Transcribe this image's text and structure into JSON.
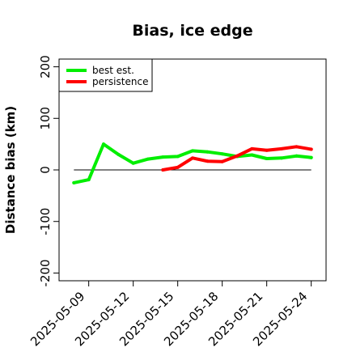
{
  "chart_data": {
    "type": "line",
    "title": "Bias, ice edge",
    "xlabel": "",
    "ylabel": "Distance bias (km)",
    "ylim": [
      -215,
      215
    ],
    "xlim": [
      "2025-05-07",
      "2025-05-25"
    ],
    "y_ticks": [
      "-200",
      "-100",
      "0",
      "100",
      "200"
    ],
    "x_ticks": [
      "2025-05-09",
      "2025-05-12",
      "2025-05-15",
      "2025-05-18",
      "2025-05-21",
      "2025-05-24"
    ],
    "reference_line": 0,
    "legend_position": "top-left",
    "grid": false,
    "series": [
      {
        "name": "best est.",
        "color": "#00ee00",
        "x": [
          "2025-05-08",
          "2025-05-09",
          "2025-05-10",
          "2025-05-11",
          "2025-05-12",
          "2025-05-13",
          "2025-05-14",
          "2025-05-15",
          "2025-05-16",
          "2025-05-17",
          "2025-05-18",
          "2025-05-19",
          "2025-05-20",
          "2025-05-21",
          "2025-05-22",
          "2025-05-23",
          "2025-05-24"
        ],
        "values": [
          -25,
          -19,
          50,
          30,
          13,
          21,
          25,
          26,
          37,
          35,
          31,
          26,
          29,
          22,
          23,
          27,
          24
        ]
      },
      {
        "name": "persistence",
        "color": "#ff0000",
        "x": [
          "2025-05-14",
          "2025-05-15",
          "2025-05-16",
          "2025-05-17",
          "2025-05-18",
          "2025-05-19",
          "2025-05-20",
          "2025-05-21",
          "2025-05-22",
          "2025-05-23",
          "2025-05-24"
        ],
        "values": [
          0,
          5,
          23,
          17,
          16,
          27,
          41,
          38,
          41,
          45,
          40
        ]
      }
    ]
  }
}
